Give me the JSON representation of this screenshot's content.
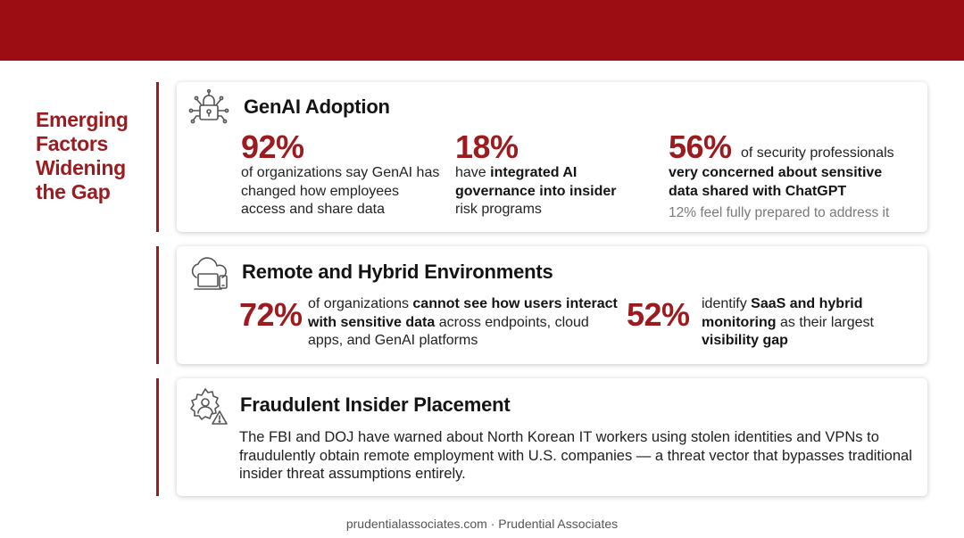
{
  "sidebar": {
    "title_lines": [
      "Emerging",
      "Factors",
      "Widening",
      "the Gap"
    ]
  },
  "cards": {
    "genai": {
      "icon": "lock-circuit-icon",
      "title": "GenAI Adoption",
      "stat1": {
        "value": "92%",
        "text": "of organizations say GenAI has changed how employees access and share data"
      },
      "stat2": {
        "value": "18%",
        "pre": "have ",
        "bold": "integrated AI governance into insider",
        "post": " risk programs"
      },
      "stat3": {
        "value": "56%",
        "inline": " of security professionals",
        "bold": "very concerned about sensitive data shared with ChatGPT",
        "note": "12% feel fully prepared to address it"
      }
    },
    "remote": {
      "icon": "cloud-devices-icon",
      "title": "Remote and Hybrid Environments",
      "stat1": {
        "value": "72%",
        "pre": "of organizations ",
        "bold1": "cannot see how users interact with sensitive data",
        "post": " across endpoints, cloud apps, and GenAI platforms"
      },
      "stat2": {
        "value": "52%",
        "pre": "identify ",
        "bold1": "SaaS and hybrid monitoring",
        "mid": " as their largest ",
        "bold2": "visibility gap"
      }
    },
    "fraud": {
      "icon": "user-gear-warning-icon",
      "title": "Fraudulent Insider Placement",
      "text": "The FBI and DOJ have warned about North Korean IT workers using stolen identities and VPNs to fraudulently obtain remote employment with U.S. companies — a threat vector that bypasses traditional insider threat assumptions entirely."
    }
  },
  "footer": {
    "text": "prudentialassociates.com · Prudential Associates"
  },
  "colors": {
    "band": "#9b0d13",
    "accent": "#9b1b1f"
  }
}
